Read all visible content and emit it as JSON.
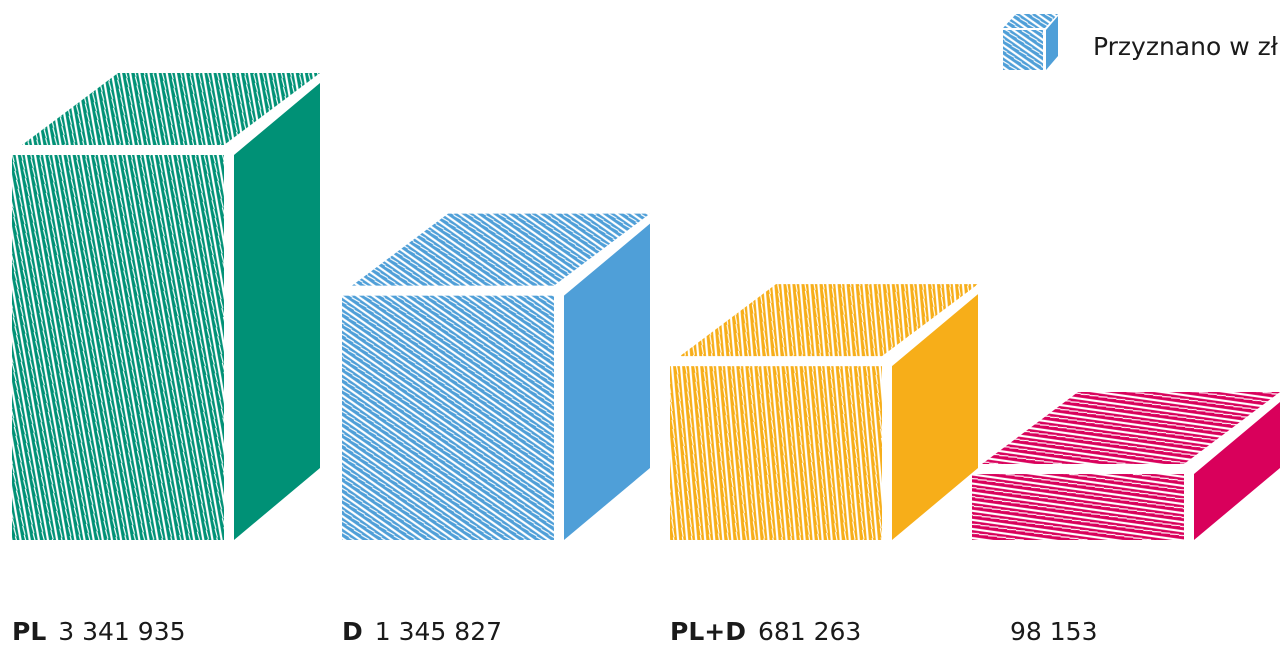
{
  "chart_data": {
    "type": "bar",
    "categories": [
      "PL",
      "D",
      "PL+D",
      null
    ],
    "series": [
      {
        "name": "Przyznano w zł",
        "color": "#4f9fd8",
        "values": [
          3341935,
          1345827,
          681263,
          98153
        ],
        "value_labels": [
          "3 341 935",
          "1 345 827",
          "681 263",
          "98 153"
        ],
        "colors": [
          "#009176",
          "#4f9fd8",
          "#f7ae19",
          "#d9005b"
        ]
      }
    ],
    "legend": "top-right"
  }
}
